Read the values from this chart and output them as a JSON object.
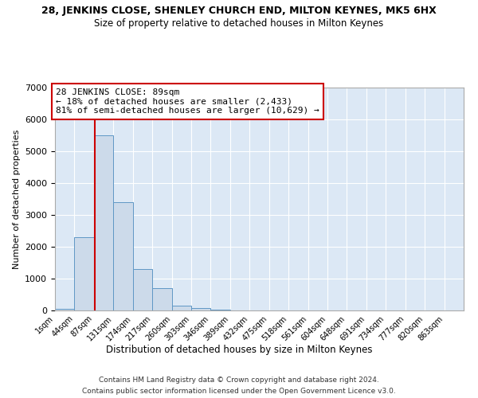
{
  "title": "28, JENKINS CLOSE, SHENLEY CHURCH END, MILTON KEYNES, MK5 6HX",
  "subtitle": "Size of property relative to detached houses in Milton Keynes",
  "xlabel": "Distribution of detached houses by size in Milton Keynes",
  "ylabel": "Number of detached properties",
  "footer_line1": "Contains HM Land Registry data © Crown copyright and database right 2024.",
  "footer_line2": "Contains public sector information licensed under the Open Government Licence v3.0.",
  "bar_color": "#ccdaea",
  "bar_edge_color": "#5f97c5",
  "background_color": "#dce8f5",
  "bins": [
    1,
    44,
    87,
    130,
    173,
    216,
    259,
    302,
    345,
    388,
    431,
    474,
    517,
    560,
    603,
    646,
    689,
    732,
    775,
    818,
    861,
    904
  ],
  "bin_labels": [
    "1sqm",
    "44sqm",
    "87sqm",
    "131sqm",
    "174sqm",
    "217sqm",
    "260sqm",
    "303sqm",
    "346sqm",
    "389sqm",
    "432sqm",
    "475sqm",
    "518sqm",
    "561sqm",
    "604sqm",
    "648sqm",
    "691sqm",
    "734sqm",
    "777sqm",
    "820sqm",
    "863sqm"
  ],
  "values": [
    50,
    2300,
    5500,
    3400,
    1300,
    700,
    150,
    70,
    30,
    5,
    2,
    1,
    0,
    0,
    0,
    0,
    0,
    0,
    0,
    0,
    0
  ],
  "property_size": 89,
  "property_line_color": "#cc0000",
  "annotation_line1": "28 JENKINS CLOSE: 89sqm",
  "annotation_line2": "← 18% of detached houses are smaller (2,433)",
  "annotation_line3": "81% of semi-detached houses are larger (10,629) →",
  "ylim": [
    0,
    7000
  ],
  "yticks": [
    0,
    1000,
    2000,
    3000,
    4000,
    5000,
    6000,
    7000
  ]
}
